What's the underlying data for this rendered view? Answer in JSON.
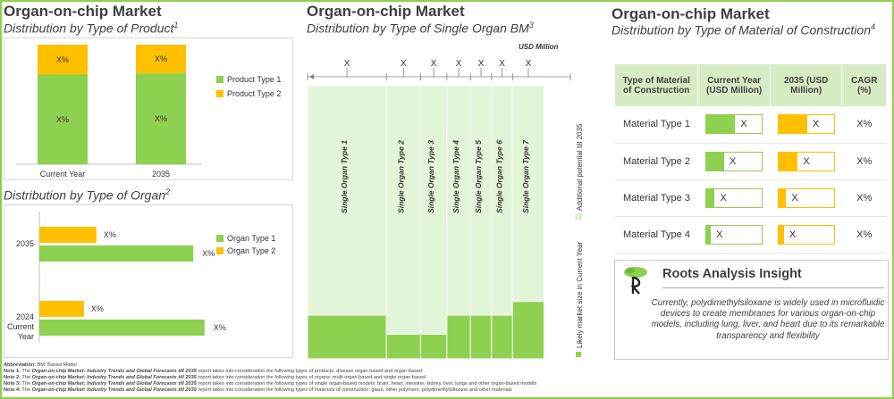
{
  "colors": {
    "green": "#8ed04f",
    "yellow": "#ffc000",
    "light_green": "#e2f5d8",
    "header_bg": "#d7ebc5"
  },
  "left_top": {
    "title": "Organ-on-chip Market",
    "subtitle": "Distribution by Type of Product",
    "subtitle_note": "1"
  },
  "left_bottom": {
    "subtitle": "Distribution by Type of Organ",
    "subtitle_note": "2"
  },
  "middle": {
    "title": "Organ-on-chip Market",
    "subtitle": "Distribution by Type of Single Organ BM",
    "subtitle_note": "3",
    "unit": "USD Million"
  },
  "right": {
    "title": "Organ-on-chip Market",
    "subtitle": "Distribution by Type of Material of Construction",
    "subtitle_note": "4"
  },
  "chart_data": [
    {
      "type": "bar",
      "stacked": true,
      "orientation": "vertical",
      "categories": [
        "Current Year",
        "2035"
      ],
      "series": [
        {
          "name": "Product Type 1",
          "values": [
            0.75,
            0.76
          ],
          "labels": [
            "X%",
            "X%"
          ],
          "color": "#8ed04f"
        },
        {
          "name": "Product Type 2",
          "values": [
            0.25,
            0.24
          ],
          "labels": [
            "X%",
            "X%"
          ],
          "color": "#ffc000"
        }
      ],
      "legend": "right"
    },
    {
      "type": "bar",
      "orientation": "horizontal",
      "categories": [
        "2035",
        "2024 Current Year"
      ],
      "series": [
        {
          "name": "Organ Type 1",
          "values": [
            82,
            88
          ],
          "labels": [
            "X%",
            "X%"
          ],
          "color": "#8ed04f"
        },
        {
          "name": "Organ Type 2",
          "values": [
            32,
            25
          ],
          "labels": [
            "X%",
            "X%"
          ],
          "color": "#ffc000"
        }
      ],
      "legend": "right"
    },
    {
      "type": "bar",
      "variant": "marimekko",
      "categories": [
        "Single Organ Type 1",
        "Single Organ Type 2",
        "Single Organ Type 3",
        "Single Organ Type 4",
        "Single Organ Type 5",
        "Single Organ Type 6",
        "Single Organ Type 7"
      ],
      "widths": [
        0.3,
        0.13,
        0.1,
        0.09,
        0.08,
        0.08,
        0.12
      ],
      "top_labels": [
        "X",
        "X",
        "X",
        "X",
        "X",
        "X",
        "X"
      ],
      "series": [
        {
          "name": "Likely market size in Current Year",
          "values": [
            0.16,
            0.09,
            0.09,
            0.16,
            0.16,
            0.16,
            0.21
          ],
          "color": "#8ed04f"
        },
        {
          "name": "Additional potential till 2035",
          "values": [
            0.84,
            0.91,
            0.91,
            0.84,
            0.84,
            0.84,
            0.79
          ],
          "color": "#e2f5d8"
        }
      ]
    },
    {
      "type": "table",
      "columns": [
        "Type of Material of Construction",
        "Current Year (USD Million)",
        "2035 (USD Million)",
        "CAGR (%)"
      ],
      "rows": [
        {
          "name": "Material Type 1",
          "current": 0.52,
          "future": 0.52,
          "current_label": "X",
          "future_label": "X",
          "cagr": "X%"
        },
        {
          "name": "Material Type 2",
          "current": 0.32,
          "future": 0.35,
          "current_label": "X",
          "future_label": "X",
          "cagr": "X%"
        },
        {
          "name": "Material Type 3",
          "current": 0.15,
          "future": 0.14,
          "current_label": "X",
          "future_label": "X",
          "cagr": "X%"
        },
        {
          "name": "Material Type 4",
          "current": 0.08,
          "future": 0.1,
          "current_label": "X",
          "future_label": "X",
          "cagr": "X%"
        }
      ]
    }
  ],
  "insight": {
    "title": "Roots Analysis Insight",
    "logo": "tree-logo",
    "text": "Currently, polydimethylsiloxane is widely used in microfluidic devices to create membranes for various organ-on-chip models, including lung, liver, and heart due to its remarkable transparency and flexibility"
  },
  "notes": {
    "abbr_label": "Abbreviation:",
    "abbr": " BM: Based Model",
    "report": "Organ-on-chip Market: Industry Trends and Global Forecasts till 2035",
    "lines": [
      {
        "label": "Note 1:",
        "pre": " The ",
        "post": " report takes into consideration the following types of products: disease organ-based and organ based"
      },
      {
        "label": "Note 2:",
        "pre": " The ",
        "post": " report takes into consideration the following types of organs: multi organ based and single organ based"
      },
      {
        "label": "Note 3:",
        "pre": " The ",
        "post": " report takes into consideration the following types of single organ-based models: brain, heart, intestine, kidney, liver, lungs and other organ-based models"
      },
      {
        "label": "Note 4:",
        "pre": " The ",
        "post": " report takes into consideration the following types of materials of construction: glass, other polymers, polydimethylsiloxane and other materials"
      }
    ]
  }
}
